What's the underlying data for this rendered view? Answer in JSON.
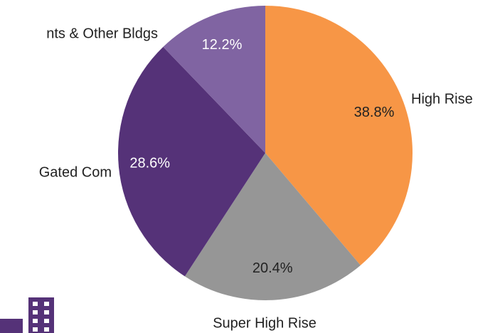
{
  "chart_data": {
    "type": "pie",
    "categories": [
      "High Rise",
      "Super High Rise",
      "Gated Com",
      "nts & Other Bldgs"
    ],
    "values": [
      38.8,
      20.4,
      28.6,
      12.2
    ],
    "value_labels": [
      "38.8%",
      "20.4%",
      "28.6%",
      "12.2%"
    ],
    "colors": [
      "#f79646",
      "#969696",
      "#553278",
      "#8064a2"
    ]
  }
}
